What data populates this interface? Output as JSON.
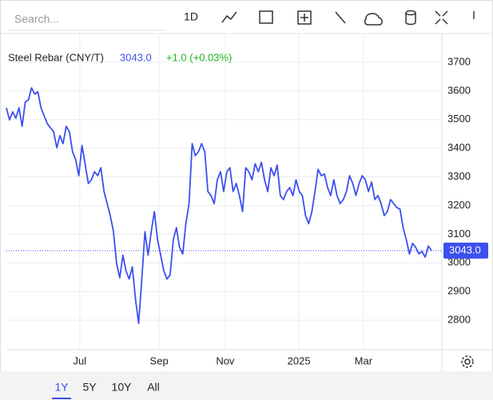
{
  "toolbar": {
    "search_placeholder": "Search...",
    "interval": "1D"
  },
  "chart_data": {
    "type": "line",
    "title": "Steel Rebar (CNY/T)",
    "last": 3043.0,
    "last_label": "3043.0",
    "change": 1.0,
    "change_label": "+1.0 (+0.03%)",
    "series": [
      {
        "name": "Steel Rebar (CNY/T)",
        "color": "#3d4ff0",
        "values": [
          3541,
          3499,
          3527,
          3505,
          3541,
          3477,
          3561,
          3569,
          3611,
          3589,
          3597,
          3541,
          3513,
          3486,
          3471,
          3458,
          3402,
          3444,
          3416,
          3477,
          3458,
          3388,
          3360,
          3304,
          3410,
          3346,
          3277,
          3290,
          3318,
          3304,
          3332,
          3249,
          3207,
          3165,
          3109,
          2998,
          2948,
          3027,
          2972,
          2944,
          2986,
          2873,
          2789,
          2944,
          3109,
          3027,
          3109,
          3179,
          3081,
          3027,
          2972,
          2944,
          2958,
          3081,
          3123,
          3054,
          3031,
          3137,
          3207,
          3416,
          3374,
          3388,
          3416,
          3388,
          3249,
          3235,
          3207,
          3290,
          3318,
          3249,
          3318,
          3332,
          3249,
          3277,
          3235,
          3179,
          3332,
          3318,
          3290,
          3346,
          3318,
          3351,
          3290,
          3249,
          3332,
          3304,
          3341,
          3235,
          3221,
          3249,
          3263,
          3235,
          3290,
          3249,
          3235,
          3165,
          3137,
          3179,
          3249,
          3326,
          3304,
          3310,
          3263,
          3235,
          3290,
          3235,
          3207,
          3221,
          3249,
          3304,
          3277,
          3235,
          3277,
          3304,
          3290,
          3249,
          3282,
          3221,
          3235,
          3207,
          3165,
          3179,
          3221,
          3207,
          3193,
          3188,
          3123,
          3081,
          3031,
          3068,
          3054,
          3031,
          3040,
          3020,
          3059,
          3043
        ]
      }
    ],
    "xlim": [
      0,
      135
    ],
    "xticks": [
      {
        "value": 23.3,
        "label": "Jul"
      },
      {
        "value": 48.5,
        "label": "Sep"
      },
      {
        "value": 69.5,
        "label": "Nov"
      },
      {
        "value": 92.9,
        "label": "2025"
      },
      {
        "value": 113.4,
        "label": "Mar"
      }
    ],
    "ylim": [
      2697,
      3792
    ],
    "yticks": [
      2800,
      2900,
      3000,
      3100,
      3200,
      3300,
      3400,
      3500,
      3600,
      3700
    ],
    "grid": true
  },
  "ranges": [
    "1Y",
    "5Y",
    "10Y",
    "All"
  ],
  "active_range": 0
}
